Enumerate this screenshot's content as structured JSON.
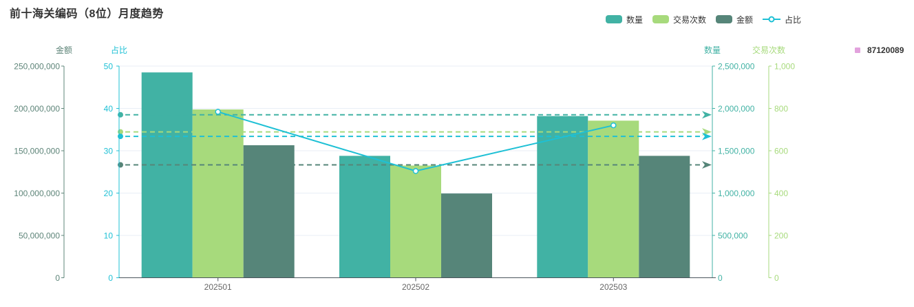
{
  "title": "前十海关编码（8位）月度趋势",
  "legend": {
    "items": [
      {
        "label": "数量",
        "type": "bar",
        "color": "#41b2a4"
      },
      {
        "label": "交易次数",
        "type": "bar",
        "color": "#a7da7c"
      },
      {
        "label": "金额",
        "type": "bar",
        "color": "#568579"
      },
      {
        "label": "占比",
        "type": "line",
        "color": "#1ec0d5"
      }
    ]
  },
  "code_legend": {
    "label": "87120089",
    "color": "#e2a2dd"
  },
  "chart_data": {
    "type": "bar",
    "title": "前十海关编码（8位）月度趋势",
    "categories": [
      "202501",
      "202502",
      "202503"
    ],
    "series": [
      {
        "name": "数量",
        "type": "bar",
        "yaxis": "数量",
        "color": "#41b2a4",
        "values": [
          2425000,
          1440000,
          1910000
        ],
        "avg_markline": 1925000
      },
      {
        "name": "交易次数",
        "type": "bar",
        "yaxis": "交易次数",
        "color": "#a7da7c",
        "values": [
          795,
          530,
          742
        ],
        "avg_markline": 689
      },
      {
        "name": "金额",
        "type": "bar",
        "yaxis": "金额",
        "color": "#568579",
        "values": [
          156500000,
          99500000,
          144000000
        ],
        "avg_markline": 133300000
      },
      {
        "name": "占比",
        "type": "line",
        "yaxis": "占比",
        "color": "#1ec0d5",
        "values": [
          39.2,
          25.2,
          36.0
        ],
        "avg_markline": 33.4
      }
    ],
    "axes": {
      "left": [
        {
          "name": "金额",
          "color": "#5d8478",
          "max": 250000000,
          "tick_labels": [
            "250,000,000",
            "200,000,000",
            "150,000,000",
            "100,000,000",
            "50,000,000",
            "0"
          ]
        },
        {
          "name": "占比",
          "color": "#1ec0d5",
          "max": 50,
          "tick_labels": [
            "50",
            "40",
            "30",
            "20",
            "10",
            "0"
          ]
        }
      ],
      "right": [
        {
          "name": "数量",
          "color": "#41b2a4",
          "max": 2500000,
          "tick_labels": [
            "2,500,000",
            "2,000,000",
            "1,500,000",
            "1,000,000",
            "500,000",
            "0"
          ]
        },
        {
          "name": "交易次数",
          "color": "#a7da7c",
          "max": 1000,
          "tick_labels": [
            "1,000",
            "800",
            "600",
            "400",
            "200",
            "0"
          ]
        }
      ]
    },
    "grid": true,
    "legend_position": "top-right",
    "x_label_color": "#666666",
    "x_axis_color": "#4b545c",
    "gridline_color": "#e8eef6",
    "markline_style": "dashed-with-arrow"
  }
}
